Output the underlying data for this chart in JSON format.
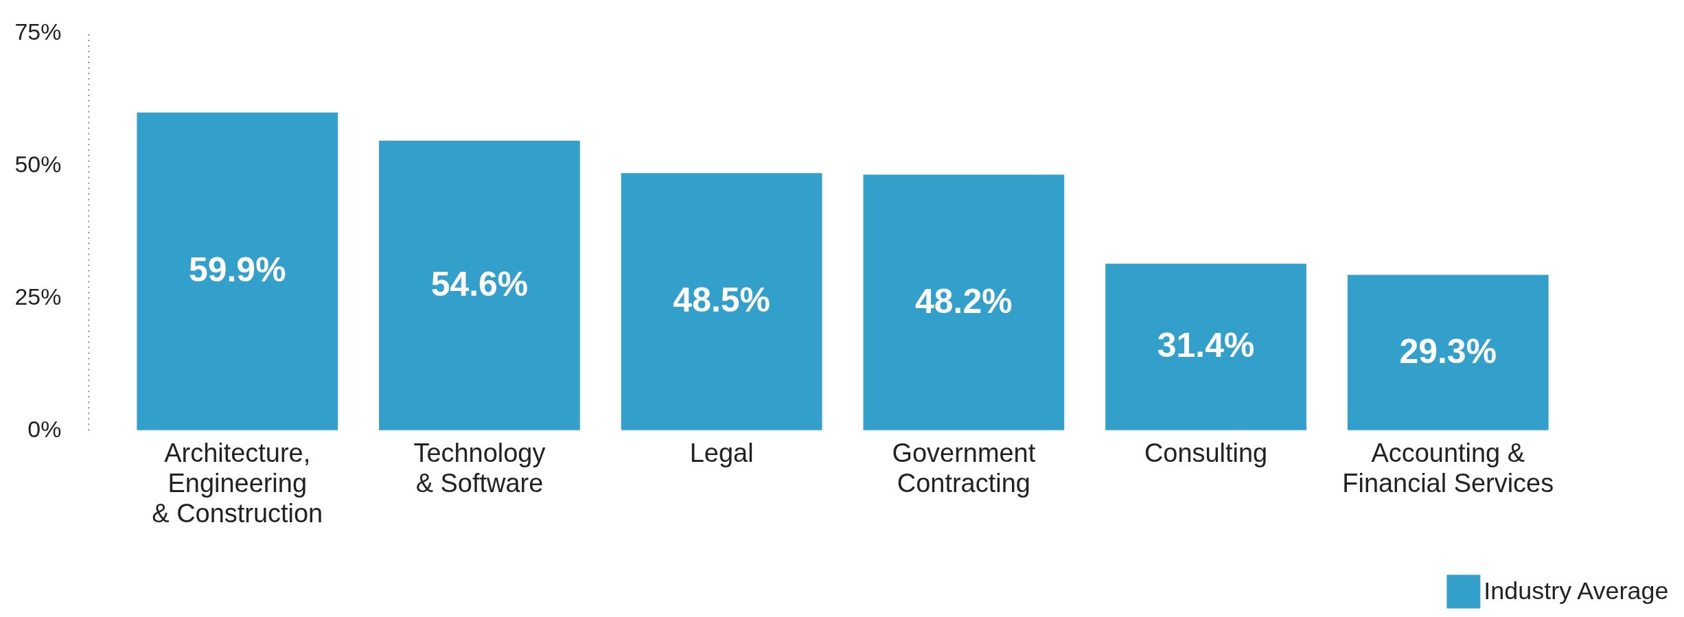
{
  "chart_data": {
    "type": "bar",
    "categories": [
      "Architecture,\nEngineering\n& Construction",
      "Technology\n& Software",
      "Legal",
      "Government\nContracting",
      "Consulting",
      "Accounting &\nFinancial Services"
    ],
    "series": [
      {
        "name": "Industry Average",
        "color": "#33a0cc",
        "values": [
          59.9,
          54.6,
          48.5,
          48.2,
          31.4,
          29.3
        ]
      }
    ],
    "value_labels": [
      "59.9%",
      "54.6%",
      "48.5%",
      "48.2%",
      "31.4%",
      "29.3%"
    ],
    "ylim": [
      0,
      75
    ],
    "yticks": [
      {
        "value": 0,
        "label": "0%"
      },
      {
        "value": 25,
        "label": "25%"
      },
      {
        "value": 50,
        "label": "50%"
      },
      {
        "value": 75,
        "label": "75%"
      }
    ],
    "grid": false,
    "legend": "bottom right"
  }
}
